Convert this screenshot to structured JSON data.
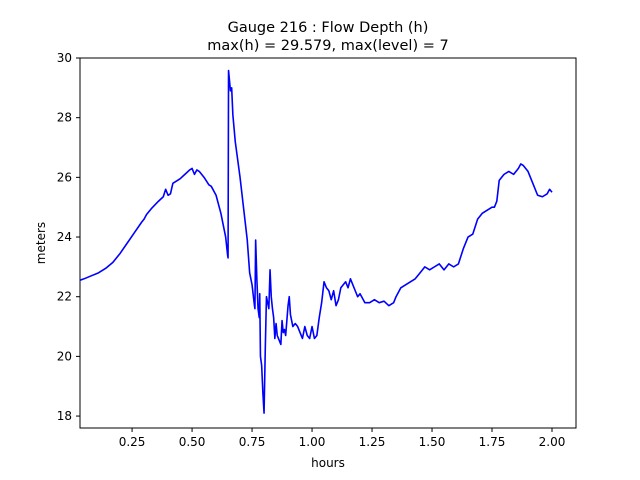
{
  "chart_data": {
    "type": "line",
    "title": "Gauge 216 : Flow Depth (h)",
    "subtitle": "max(h) =  29.579,    max(level) = 7",
    "xlabel": "hours",
    "ylabel": "meters",
    "xlim": [
      0.033,
      2.1
    ],
    "ylim": [
      17.6,
      30.0
    ],
    "xticks": [
      0.25,
      0.5,
      0.75,
      1.0,
      1.25,
      1.5,
      1.75,
      2.0
    ],
    "xtick_labels": [
      "0.25",
      "0.50",
      "0.75",
      "1.00",
      "1.25",
      "1.50",
      "1.75",
      "2.00"
    ],
    "yticks": [
      18,
      20,
      22,
      24,
      26,
      28,
      30
    ],
    "ytick_labels": [
      "18",
      "20",
      "22",
      "24",
      "26",
      "28",
      "30"
    ],
    "grid": false,
    "line_color": "#0000ff",
    "series": [
      {
        "x": [
          0.033,
          0.05,
          0.08,
          0.11,
          0.14,
          0.17,
          0.2,
          0.23,
          0.26,
          0.29,
          0.3,
          0.31,
          0.33,
          0.36,
          0.38,
          0.39,
          0.4,
          0.41,
          0.42,
          0.43,
          0.45,
          0.47,
          0.49,
          0.5,
          0.51,
          0.52,
          0.53,
          0.55,
          0.57,
          0.58,
          0.6,
          0.62,
          0.64,
          0.648,
          0.65,
          0.652,
          0.66,
          0.665,
          0.67,
          0.68,
          0.7,
          0.72,
          0.73,
          0.74,
          0.75,
          0.76,
          0.762,
          0.765,
          0.77,
          0.775,
          0.78,
          0.782,
          0.785,
          0.79,
          0.795,
          0.8,
          0.805,
          0.81,
          0.82,
          0.825,
          0.83,
          0.835,
          0.84,
          0.845,
          0.85,
          0.855,
          0.86,
          0.87,
          0.875,
          0.88,
          0.885,
          0.89,
          0.9,
          0.905,
          0.91,
          0.92,
          0.93,
          0.94,
          0.95,
          0.96,
          0.97,
          0.98,
          0.99,
          1.0,
          1.01,
          1.02,
          1.03,
          1.04,
          1.05,
          1.06,
          1.07,
          1.08,
          1.09,
          1.1,
          1.11,
          1.12,
          1.13,
          1.14,
          1.15,
          1.16,
          1.17,
          1.18,
          1.19,
          1.2,
          1.22,
          1.24,
          1.26,
          1.28,
          1.3,
          1.32,
          1.34,
          1.35,
          1.37,
          1.39,
          1.41,
          1.43,
          1.45,
          1.47,
          1.49,
          1.51,
          1.53,
          1.55,
          1.57,
          1.59,
          1.61,
          1.63,
          1.65,
          1.67,
          1.69,
          1.71,
          1.73,
          1.75,
          1.76,
          1.77,
          1.78,
          1.8,
          1.82,
          1.84,
          1.86,
          1.87,
          1.88,
          1.9,
          1.92,
          1.94,
          1.96,
          1.98,
          1.99,
          2.0
        ],
        "values": [
          22.55,
          22.6,
          22.7,
          22.8,
          22.95,
          23.15,
          23.45,
          23.8,
          24.15,
          24.5,
          24.6,
          24.75,
          24.95,
          25.2,
          25.35,
          25.6,
          25.4,
          25.45,
          25.8,
          25.85,
          25.95,
          26.1,
          26.25,
          26.3,
          26.1,
          26.25,
          26.2,
          26.0,
          25.75,
          25.7,
          25.4,
          24.8,
          24.0,
          23.4,
          23.3,
          29.58,
          28.9,
          29.0,
          28.1,
          27.2,
          26.0,
          24.6,
          23.9,
          22.8,
          22.4,
          21.7,
          21.6,
          23.9,
          22.6,
          21.6,
          21.3,
          22.1,
          20.0,
          19.7,
          18.8,
          18.1,
          20.2,
          22.0,
          21.6,
          22.9,
          22.0,
          21.6,
          21.3,
          20.6,
          21.1,
          20.7,
          20.6,
          20.4,
          21.2,
          20.8,
          20.9,
          20.7,
          21.7,
          22.0,
          21.4,
          21.0,
          21.1,
          21.0,
          20.8,
          20.6,
          21.0,
          20.7,
          20.6,
          21.0,
          20.6,
          20.7,
          21.3,
          21.8,
          22.5,
          22.3,
          22.2,
          21.9,
          22.2,
          21.7,
          21.9,
          22.3,
          22.4,
          22.5,
          22.3,
          22.6,
          22.4,
          22.2,
          22.0,
          22.1,
          21.8,
          21.8,
          21.9,
          21.8,
          21.85,
          21.7,
          21.8,
          22.0,
          22.3,
          22.4,
          22.5,
          22.6,
          22.8,
          23.0,
          22.9,
          23.0,
          23.1,
          22.9,
          23.1,
          23.0,
          23.1,
          23.6,
          24.0,
          24.1,
          24.6,
          24.8,
          24.9,
          25.0,
          25.0,
          25.2,
          25.9,
          26.1,
          26.2,
          26.1,
          26.3,
          26.45,
          26.4,
          26.2,
          25.8,
          25.4,
          25.35,
          25.45,
          25.6,
          25.5
        ]
      }
    ]
  }
}
